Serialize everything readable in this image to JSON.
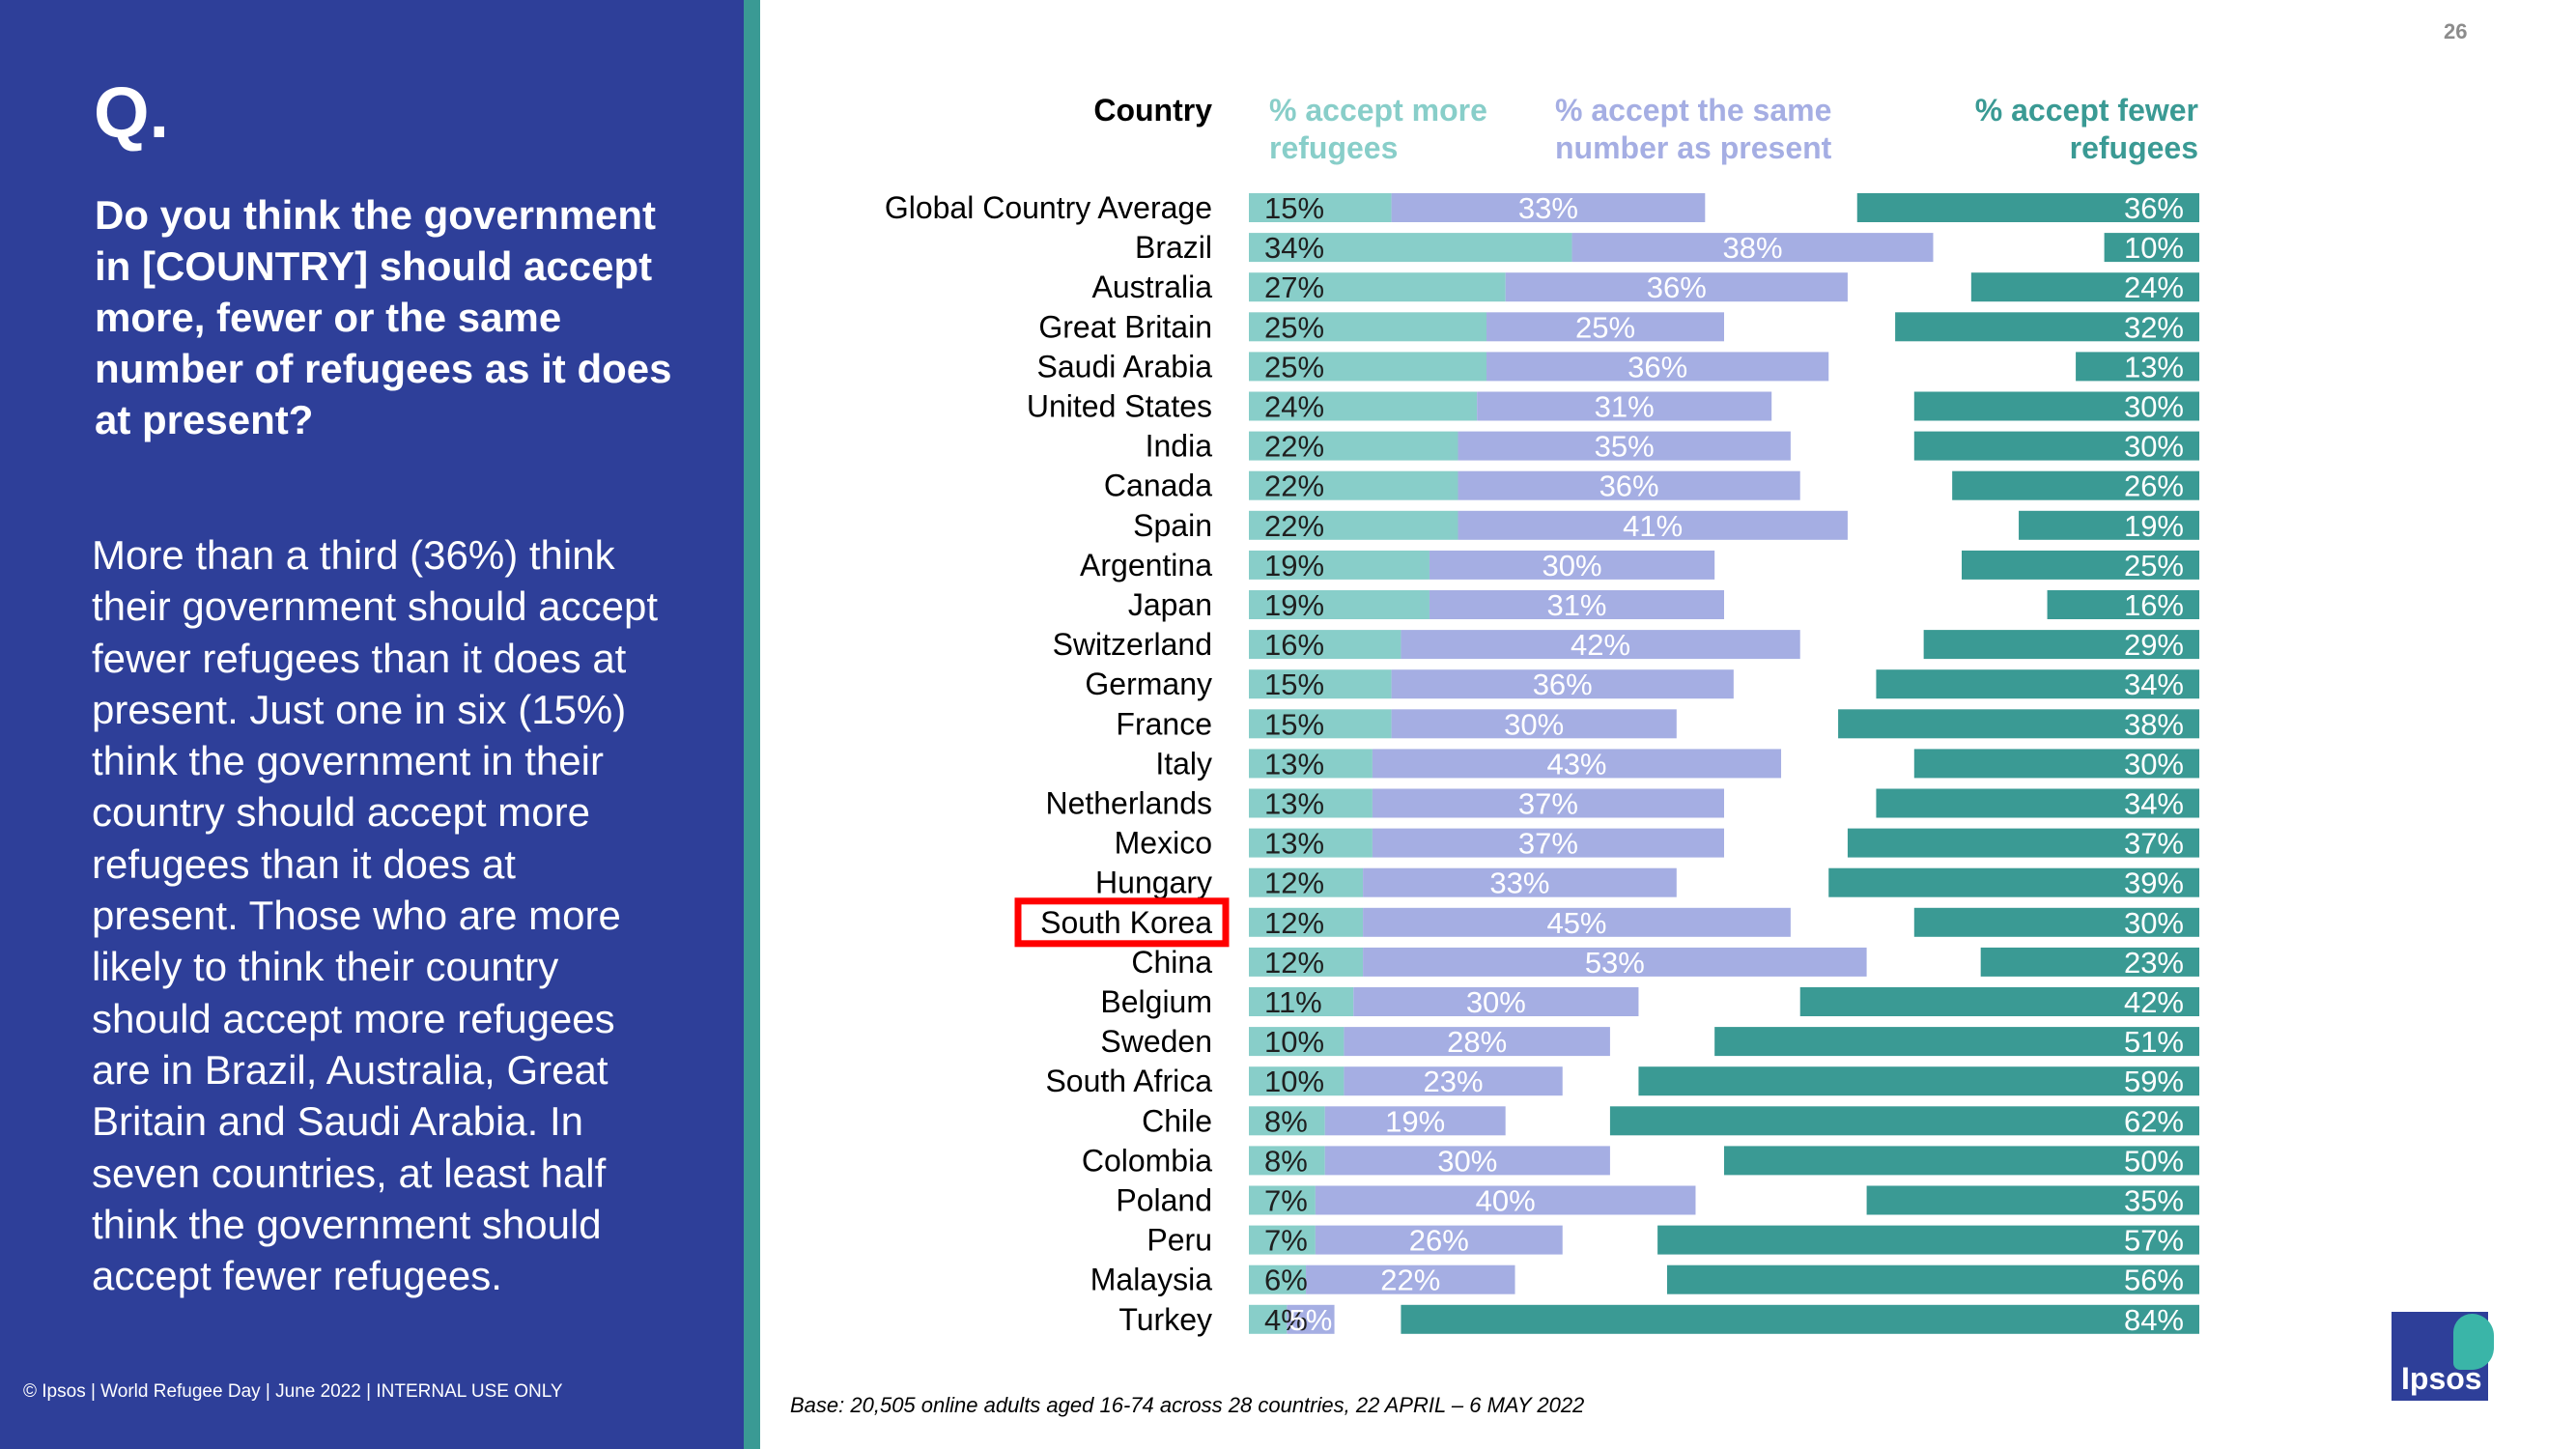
{
  "panel": {
    "q_label": "Q.",
    "question": "Do you think the government in [COUNTRY] should accept more, fewer or the same number of refugees as it does at present?",
    "summary": "More than a third (36%) think their government should accept fewer refugees than it does at present. Just one in six (15%) think the government in their country should accept more refugees than it does at present. Those who are more likely to think their country should accept more refugees are in Brazil, Australia, Great Britain and Saudi Arabia. In seven countries, at least half think the government should accept fewer refugees.",
    "footer": "© Ipsos | World Refugee Day | June 2022 | INTERNAL USE ONLY"
  },
  "page_number": "26",
  "base_note": "Base: 20,505 online adults aged 16-74 across 28 countries,  22 APRIL – 6 MAY 2022",
  "logo_text": "Ipsos",
  "colors": {
    "panel": "#2E3F99",
    "more": "#88CEC9",
    "same": "#A5AEE3",
    "fewer": "#3A9A94",
    "highlight": "#FF0000"
  },
  "chart_data": {
    "type": "bar",
    "orientation": "horizontal",
    "stacked": true,
    "column_header": "Country",
    "highlighted": "South Korea",
    "categories": [
      "Global Country Average",
      "Brazil",
      "Australia",
      "Great Britain",
      "Saudi Arabia",
      "United States",
      "India",
      "Canada",
      "Spain",
      "Argentina",
      "Japan",
      "Switzerland",
      "Germany",
      "France",
      "Italy",
      "Netherlands",
      "Mexico",
      "Hungary",
      "South Korea",
      "China",
      "Belgium",
      "Sweden",
      "South Africa",
      "Chile",
      "Colombia",
      "Poland",
      "Peru",
      "Malaysia",
      "Turkey"
    ],
    "series": [
      {
        "name": "% accept more refugees",
        "values": [
          15,
          34,
          27,
          25,
          25,
          24,
          22,
          22,
          22,
          19,
          19,
          16,
          15,
          15,
          13,
          13,
          13,
          12,
          12,
          12,
          11,
          10,
          10,
          8,
          8,
          7,
          7,
          6,
          4
        ]
      },
      {
        "name": "% accept the same number as present",
        "values": [
          33,
          38,
          36,
          25,
          36,
          31,
          35,
          36,
          41,
          30,
          31,
          42,
          36,
          30,
          43,
          37,
          37,
          33,
          45,
          53,
          30,
          28,
          23,
          19,
          30,
          40,
          26,
          22,
          5
        ]
      },
      {
        "name": "% accept fewer refugees",
        "values": [
          36,
          10,
          24,
          32,
          13,
          30,
          30,
          26,
          19,
          25,
          16,
          29,
          34,
          38,
          30,
          34,
          37,
          39,
          30,
          23,
          42,
          51,
          59,
          62,
          50,
          35,
          57,
          56,
          84
        ]
      }
    ],
    "value_suffix": "%",
    "xlim": [
      0,
      100
    ]
  }
}
